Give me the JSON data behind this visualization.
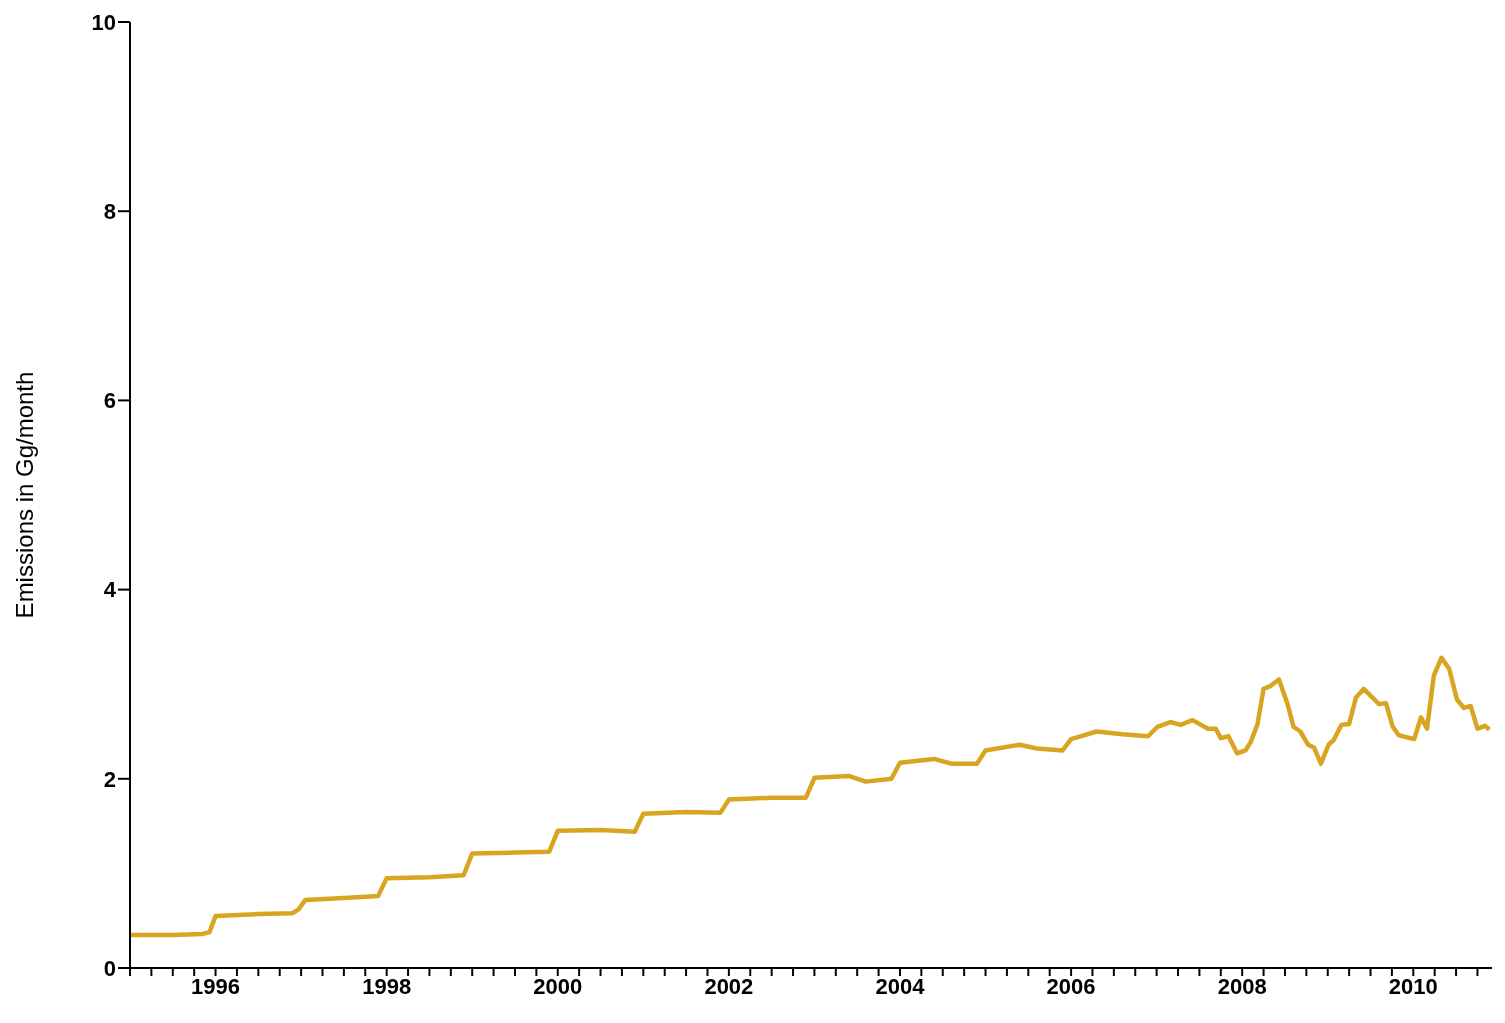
{
  "chart_data": {
    "type": "line",
    "ylabel": "Emissions in Gg/month",
    "xlim": [
      1995,
      2010.92
    ],
    "ylim": [
      0,
      10
    ],
    "yticks": [
      0,
      2,
      4,
      6,
      8,
      10
    ],
    "xticks": [
      {
        "value": 1995,
        "label": null
      },
      {
        "value": 1995.25,
        "label": null
      },
      {
        "value": 1995.5,
        "label": null
      },
      {
        "value": 1995.75,
        "label": null
      },
      1996,
      {
        "value": 1996.25,
        "label": null
      },
      {
        "value": 1996.5,
        "label": null
      },
      {
        "value": 1996.75,
        "label": null
      },
      {
        "value": 1997,
        "label": null
      },
      {
        "value": 1997.25,
        "label": null
      },
      {
        "value": 1997.5,
        "label": null
      },
      {
        "value": 1997.75,
        "label": null
      },
      1998,
      {
        "value": 1998.25,
        "label": null
      },
      {
        "value": 1998.5,
        "label": null
      },
      {
        "value": 1998.75,
        "label": null
      },
      {
        "value": 1999,
        "label": null
      },
      {
        "value": 1999.25,
        "label": null
      },
      {
        "value": 1999.5,
        "label": null
      },
      {
        "value": 1999.75,
        "label": null
      },
      2000,
      {
        "value": 2000.25,
        "label": null
      },
      {
        "value": 2000.5,
        "label": null
      },
      {
        "value": 2000.75,
        "label": null
      },
      {
        "value": 2001,
        "label": null
      },
      {
        "value": 2001.25,
        "label": null
      },
      {
        "value": 2001.5,
        "label": null
      },
      {
        "value": 2001.75,
        "label": null
      },
      2002,
      {
        "value": 2002.25,
        "label": null
      },
      {
        "value": 2002.5,
        "label": null
      },
      {
        "value": 2002.75,
        "label": null
      },
      {
        "value": 2003,
        "label": null
      },
      {
        "value": 2003.25,
        "label": null
      },
      {
        "value": 2003.5,
        "label": null
      },
      {
        "value": 2003.75,
        "label": null
      },
      2004,
      {
        "value": 2004.25,
        "label": null
      },
      {
        "value": 2004.5,
        "label": null
      },
      {
        "value": 2004.75,
        "label": null
      },
      {
        "value": 2005,
        "label": null
      },
      {
        "value": 2005.25,
        "label": null
      },
      {
        "value": 2005.5,
        "label": null
      },
      {
        "value": 2005.75,
        "label": null
      },
      2006,
      {
        "value": 2006.25,
        "label": null
      },
      {
        "value": 2006.5,
        "label": null
      },
      {
        "value": 2006.75,
        "label": null
      },
      {
        "value": 2007,
        "label": null
      },
      {
        "value": 2007.25,
        "label": null
      },
      {
        "value": 2007.5,
        "label": null
      },
      {
        "value": 2007.75,
        "label": null
      },
      2008,
      {
        "value": 2008.25,
        "label": null
      },
      {
        "value": 2008.5,
        "label": null
      },
      {
        "value": 2008.75,
        "label": null
      },
      {
        "value": 2009,
        "label": null
      },
      {
        "value": 2009.25,
        "label": null
      },
      {
        "value": 2009.5,
        "label": null
      },
      {
        "value": 2009.75,
        "label": null
      },
      2010,
      {
        "value": 2010.25,
        "label": null
      },
      {
        "value": 2010.5,
        "label": null
      },
      {
        "value": 2010.75,
        "label": null
      }
    ],
    "grid": false,
    "marker": "none",
    "line_style": "solid",
    "series": [
      {
        "color": "#d9a520",
        "x": [
          1995.0,
          1995.5,
          1995.85,
          1995.93,
          1996.0,
          1996.5,
          1996.9,
          1996.97,
          1997.05,
          1997.5,
          1997.9,
          1998.0,
          1998.5,
          1998.9,
          1999.0,
          1999.5,
          1999.9,
          2000.0,
          2000.5,
          2000.9,
          2001.0,
          2001.5,
          2001.9,
          2002.0,
          2002.5,
          2002.9,
          2003.0,
          2003.4,
          2003.6,
          2003.9,
          2004.0,
          2004.4,
          2004.6,
          2004.9,
          2005.0,
          2005.4,
          2005.6,
          2005.9,
          2006.0,
          2006.3,
          2006.6,
          2006.9,
          2007.01,
          2007.16,
          2007.28,
          2007.42,
          2007.6,
          2007.69,
          2007.75,
          2007.84,
          2007.94,
          2008.04,
          2008.1,
          2008.18,
          2008.25,
          2008.33,
          2008.43,
          2008.53,
          2008.6,
          2008.68,
          2008.77,
          2008.84,
          2008.92,
          2009.01,
          2009.07,
          2009.16,
          2009.25,
          2009.33,
          2009.42,
          2009.6,
          2009.68,
          2009.76,
          2009.83,
          2010.01,
          2010.09,
          2010.16,
          2010.24,
          2010.33,
          2010.42,
          2010.51,
          2010.59,
          2010.67,
          2010.75,
          2010.84,
          2010.89
        ],
        "values": [
          0.35,
          0.35,
          0.36,
          0.38,
          0.55,
          0.57,
          0.58,
          0.62,
          0.72,
          0.74,
          0.76,
          0.95,
          0.96,
          0.98,
          1.21,
          1.22,
          1.23,
          1.45,
          1.46,
          1.44,
          1.63,
          1.65,
          1.64,
          1.78,
          1.8,
          1.8,
          2.01,
          2.03,
          1.97,
          2.0,
          2.17,
          2.21,
          2.16,
          2.16,
          2.3,
          2.36,
          2.32,
          2.3,
          2.42,
          2.5,
          2.47,
          2.45,
          2.55,
          2.6,
          2.57,
          2.62,
          2.53,
          2.53,
          2.43,
          2.45,
          2.27,
          2.3,
          2.39,
          2.58,
          2.95,
          2.98,
          3.05,
          2.79,
          2.55,
          2.5,
          2.36,
          2.33,
          2.16,
          2.36,
          2.41,
          2.57,
          2.58,
          2.86,
          2.95,
          2.79,
          2.8,
          2.55,
          2.46,
          2.42,
          2.65,
          2.53,
          3.09,
          3.28,
          3.16,
          2.84,
          2.75,
          2.77,
          2.53,
          2.56,
          2.52
        ]
      }
    ]
  }
}
